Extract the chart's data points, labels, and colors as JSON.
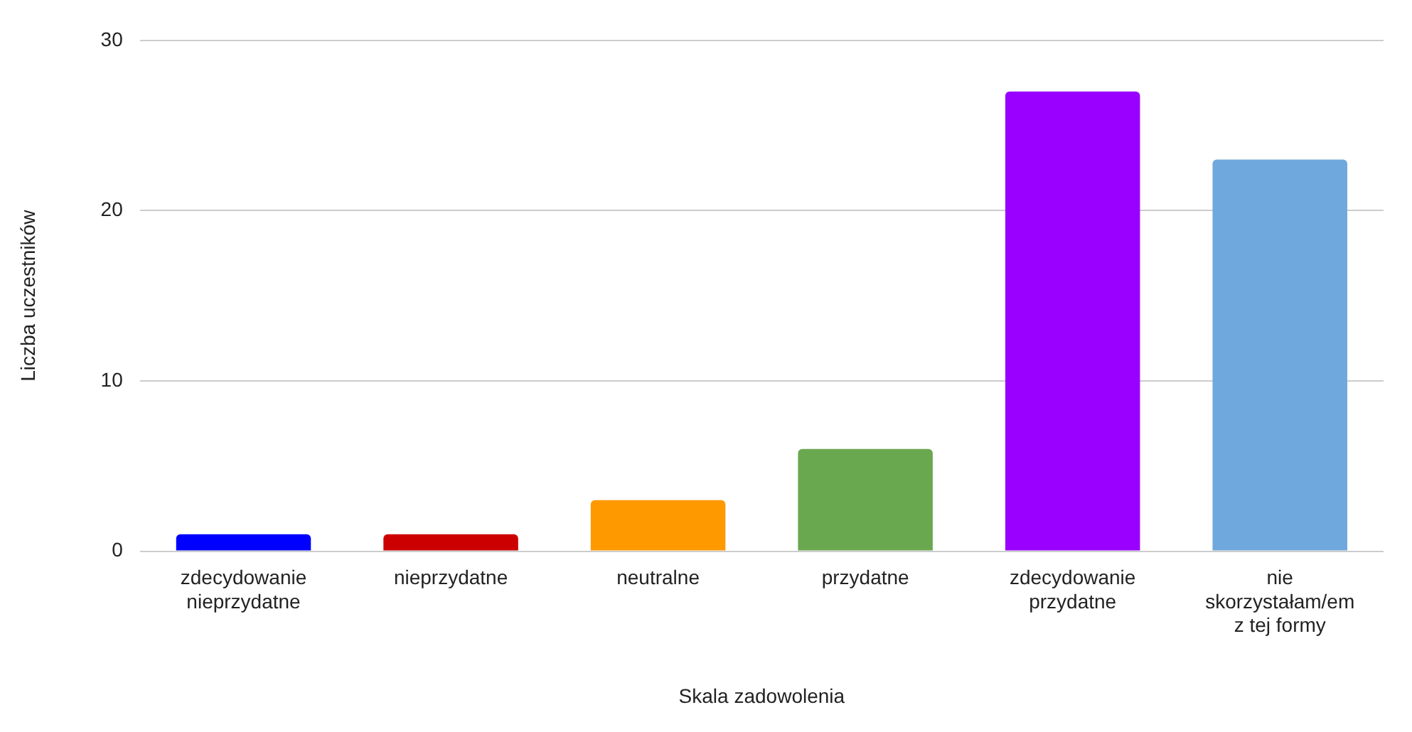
{
  "chart_data": {
    "type": "bar",
    "xlabel": "Skala zadowolenia",
    "ylabel": "Liczba uczestników",
    "categories": [
      "zdecydowanie nieprzydatne",
      "nieprzydatne",
      "neutralne",
      "przydatne",
      "zdecydowanie przydatne",
      "nie skorzystałam/em z tej formy"
    ],
    "values": [
      1,
      1,
      3,
      6,
      27,
      23
    ],
    "colors": [
      "#0000ff",
      "#cc0000",
      "#ff9900",
      "#6aa84f",
      "#9900ff",
      "#6fa8dc"
    ],
    "ylim": [
      0,
      30
    ],
    "yticks": [
      0,
      10,
      20,
      30
    ],
    "grid": "y",
    "legend": false
  }
}
